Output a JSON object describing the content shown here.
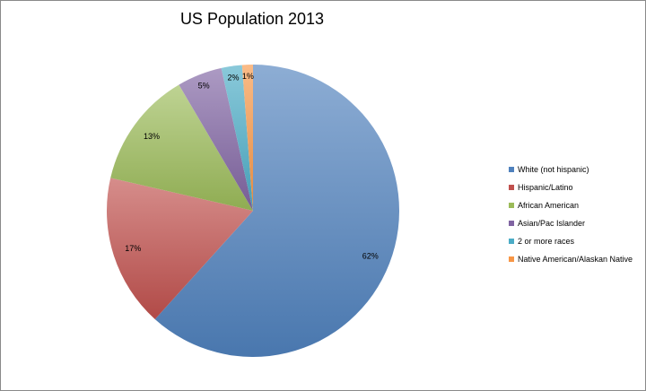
{
  "chart_data": {
    "type": "pie",
    "title": "US Population 2013",
    "slices": [
      {
        "label": "White (not hispanic)",
        "value": 62,
        "display": "62%",
        "color": "#4f81bd"
      },
      {
        "label": "Hispanic/Latino",
        "value": 17,
        "display": "17%",
        "color": "#c0504d"
      },
      {
        "label": "African American",
        "value": 13,
        "display": "13%",
        "color": "#9bbb59"
      },
      {
        "label": "Asian/Pac Islander",
        "value": 5,
        "display": "5%",
        "color": "#8064a2"
      },
      {
        "label": "2 or more races",
        "value": 2.3,
        "display": "2%",
        "color": "#4bacc6"
      },
      {
        "label": "Native American/Alaskan Native",
        "value": 1.2,
        "display": "1%",
        "color": "#f79646"
      }
    ],
    "legend_position": "right",
    "start_angle": "12 o'clock",
    "direction": "clockwise"
  }
}
